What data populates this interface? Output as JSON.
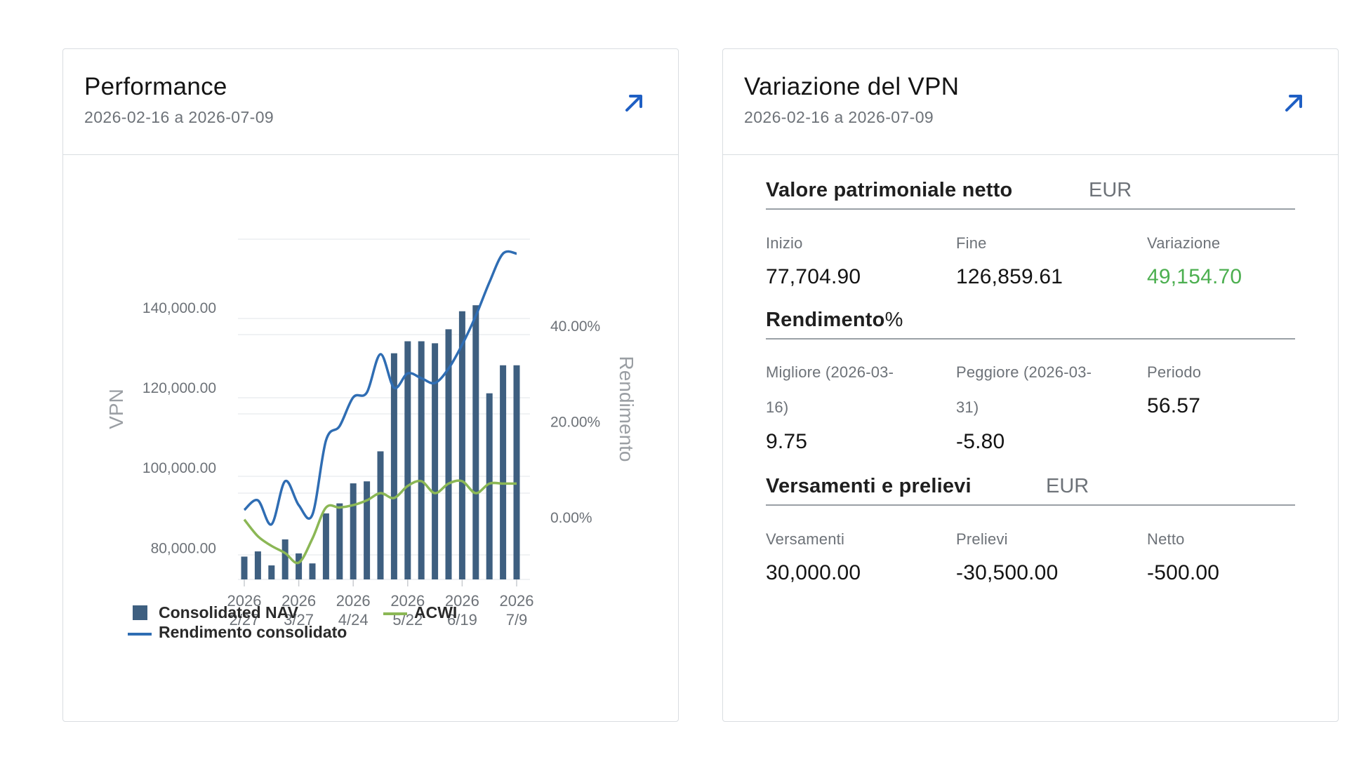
{
  "performance": {
    "title": "Performance",
    "date_range": "2026-02-16 a 2026-07-09",
    "expand_icon": "arrow-up-right-icon",
    "legend": {
      "nav": "Consolidated NAV",
      "acwi": "ACWI",
      "return": "Rendimento consolidato"
    },
    "colors": {
      "bars": "#3e5f80",
      "return_line": "#2f6db3",
      "acwi_line": "#8bb755"
    }
  },
  "chart_data": {
    "type": "bar",
    "x_tick_labels": [
      [
        "2026",
        "2/27"
      ],
      [
        "2026",
        "3/27"
      ],
      [
        "2026",
        "4/24"
      ],
      [
        "2026",
        "5/22"
      ],
      [
        "2026",
        "6/19"
      ],
      [
        "2026",
        "7/9"
      ]
    ],
    "y_left": {
      "label": "VPN",
      "ticks": [
        "140,000.00",
        "120,000.00",
        "100,000.00",
        "80,000.00"
      ],
      "range": [
        72000,
        157000
      ]
    },
    "y_right": {
      "label": "Rendimento",
      "ticks": [
        "40.00%",
        "20.00%",
        "0.00%"
      ],
      "range": [
        -13,
        58
      ]
    },
    "series": [
      {
        "name": "Consolidated NAV",
        "type": "bar",
        "values": [
          77700,
          79000,
          75500,
          82000,
          78500,
          76000,
          88500,
          91000,
          96000,
          96500,
          104000,
          128500,
          131500,
          131500,
          131000,
          134500,
          139000,
          140500,
          118500,
          125500,
          125500
        ]
      },
      {
        "name": "Rendimento consolidato",
        "type": "line",
        "values": [
          1.5,
          3.5,
          -1.5,
          7.5,
          2.5,
          0.5,
          16,
          19,
          25,
          26,
          34,
          27,
          30,
          29,
          28,
          31,
          36,
          42,
          49,
          55,
          55
        ]
      },
      {
        "name": "ACWI",
        "type": "line",
        "values": [
          -0.5,
          -4,
          -6,
          -7.5,
          -9.5,
          -4.5,
          2,
          2,
          2.5,
          3.5,
          5,
          4,
          6.5,
          7.5,
          5,
          7,
          7.5,
          5,
          7,
          7,
          7
        ]
      }
    ],
    "grid": true,
    "legend_position": "bottom-left"
  },
  "nav_change": {
    "title": "Variazione del VPN",
    "date_range": "2026-02-16 a 2026-07-09",
    "expand_icon": "arrow-up-right-icon",
    "net_asset_value": {
      "title": "Valore patrimoniale netto",
      "currency": "EUR",
      "start_label": "Inizio",
      "start_value": "77,704.90",
      "end_label": "Fine",
      "end_value": "126,859.61",
      "change_label": "Variazione",
      "change_value": "49,154.70",
      "change_color": "#4caf50"
    },
    "returns": {
      "title": "Rendimento",
      "title_suffix": "%",
      "best_label_line1": "Migliore (2026-03-",
      "best_label_line2": "16)",
      "best_value": "9.75",
      "worst_label_line1": "Peggiore (2026-03-",
      "worst_label_line2": "31)",
      "worst_value": "-5.80",
      "period_label": "Periodo",
      "period_value": "56.57"
    },
    "deposits": {
      "title": "Versamenti e prelievi",
      "currency": "EUR",
      "deposits_label": "Versamenti",
      "deposits_value": "30,000.00",
      "withdrawals_label": "Prelievi",
      "withdrawals_value": "-30,500.00",
      "net_label": "Netto",
      "net_value": "-500.00"
    }
  }
}
